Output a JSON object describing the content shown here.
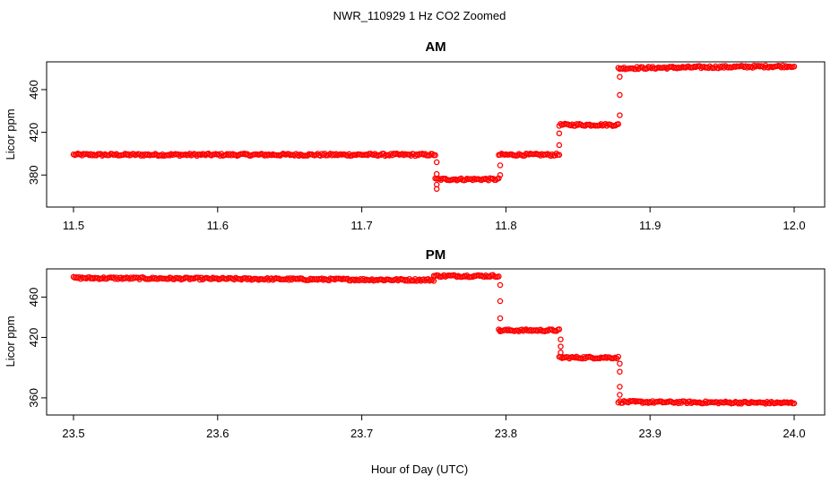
{
  "figure": {
    "title": "NWR_110929  1 Hz CO2 Zoomed",
    "xlabel": "Hour of Day (UTC)"
  },
  "chart_data": [
    {
      "type": "scatter",
      "title": "AM",
      "xlabel": "",
      "ylabel": "Licor ppm",
      "xlim": [
        11.5,
        12.0
      ],
      "ylim": [
        350,
        486
      ],
      "xticks": [
        "11.5",
        "11.6",
        "11.7",
        "11.8",
        "11.9",
        "12.0"
      ],
      "yticks": [
        "380",
        "420",
        "460"
      ],
      "marker_color": "#ff0000",
      "segments": [
        {
          "x0": 11.5,
          "x1": 11.751,
          "y0": 399,
          "y1": 399
        },
        {
          "x0": 11.751,
          "x1": 11.795,
          "y0": 376,
          "y1": 376
        },
        {
          "x0": 11.795,
          "x1": 11.837,
          "y0": 399,
          "y1": 399
        },
        {
          "x0": 11.837,
          "x1": 11.878,
          "y0": 427,
          "y1": 427
        },
        {
          "x0": 11.878,
          "x1": 12.0,
          "y0": 480,
          "y1": 482
        }
      ],
      "transitions": [
        {
          "x": 11.752,
          "y": [
            392,
            381,
            371,
            367
          ]
        },
        {
          "x": 11.796,
          "y": [
            380,
            389
          ]
        },
        {
          "x": 11.837,
          "y": [
            408,
            419
          ]
        },
        {
          "x": 11.879,
          "y": [
            436,
            455,
            472
          ]
        }
      ]
    },
    {
      "type": "scatter",
      "title": "PM",
      "xlabel": "",
      "ylabel": "Licor ppm",
      "xlim": [
        23.5,
        24.0
      ],
      "ylim": [
        343,
        488
      ],
      "xticks": [
        "23.5",
        "23.6",
        "23.7",
        "23.8",
        "23.9",
        "24.0"
      ],
      "yticks": [
        "360",
        "420",
        "460"
      ],
      "marker_color": "#ff0000",
      "segments": [
        {
          "x0": 23.5,
          "x1": 23.75,
          "y0": 479,
          "y1": 477
        },
        {
          "x0": 23.75,
          "x1": 23.795,
          "y0": 481,
          "y1": 481
        },
        {
          "x0": 23.795,
          "x1": 23.837,
          "y0": 427,
          "y1": 427
        },
        {
          "x0": 23.837,
          "x1": 23.878,
          "y0": 400,
          "y1": 400
        },
        {
          "x0": 23.878,
          "x1": 24.0,
          "y0": 356,
          "y1": 355
        }
      ],
      "transitions": [
        {
          "x": 23.796,
          "y": [
            472,
            456,
            439,
            426
          ]
        },
        {
          "x": 23.838,
          "y": [
            418,
            411,
            405
          ]
        },
        {
          "x": 23.879,
          "y": [
            394,
            386,
            371,
            363
          ]
        }
      ]
    }
  ]
}
